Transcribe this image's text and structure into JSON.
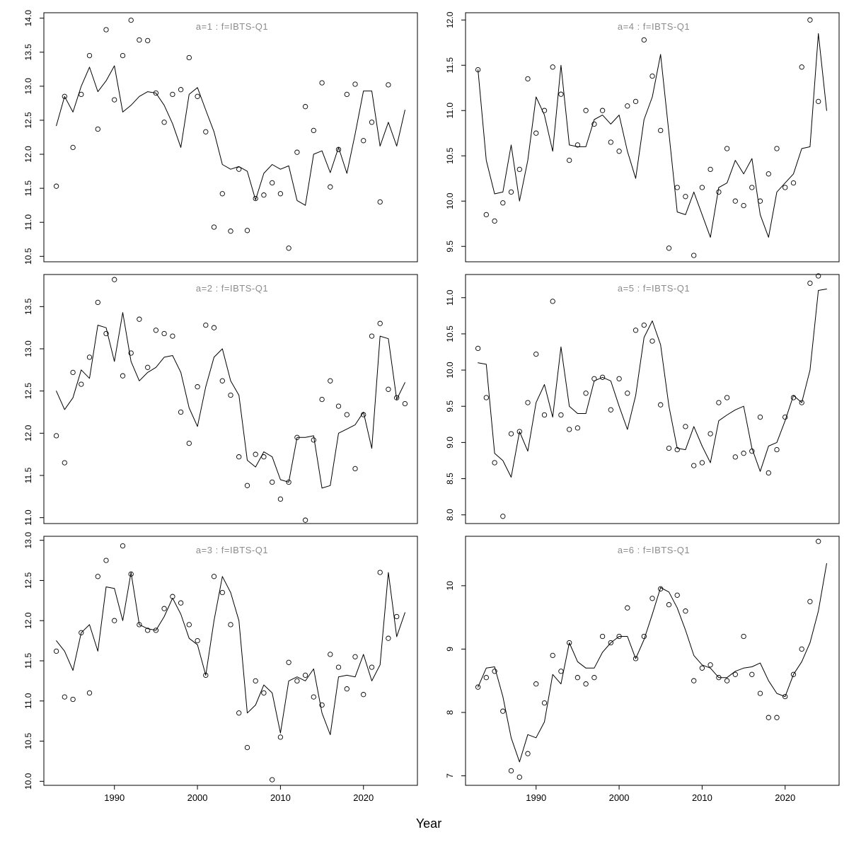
{
  "figure": {
    "xlabel": "Year"
  },
  "chart_data": [
    {
      "type": "line",
      "title": "a=1  :  f=IBTS-Q1",
      "xlabel": "Year",
      "xlim": [
        1981.5,
        2026.5
      ],
      "xticks": [
        1990,
        2000,
        2010,
        2020
      ],
      "show_x_tick_labels": false,
      "ylim": [
        10.42,
        14.08
      ],
      "yticks": [
        "10.5",
        "11.0",
        "11.5",
        "12.0",
        "12.5",
        "13.0",
        "13.5",
        "14.0"
      ],
      "x": [
        1983,
        1984,
        1985,
        1986,
        1987,
        1988,
        1989,
        1990,
        1991,
        1992,
        1993,
        1994,
        1995,
        1996,
        1997,
        1998,
        1999,
        2000,
        2001,
        2002,
        2003,
        2004,
        2005,
        2006,
        2007,
        2008,
        2009,
        2010,
        2011,
        2012,
        2013,
        2014,
        2015,
        2016,
        2017,
        2018,
        2019,
        2020,
        2021,
        2022,
        2023,
        2024,
        2025
      ],
      "series": [
        {
          "name": "fitted-line",
          "style": "line",
          "values": [
            12.42,
            12.85,
            12.62,
            13.0,
            13.28,
            12.92,
            13.08,
            13.3,
            12.62,
            12.72,
            12.85,
            12.92,
            12.9,
            12.72,
            12.45,
            12.1,
            12.88,
            12.98,
            12.65,
            12.33,
            11.85,
            11.78,
            11.82,
            11.75,
            11.33,
            11.72,
            11.85,
            11.78,
            11.83,
            11.32,
            11.25,
            12.0,
            12.05,
            11.73,
            12.1,
            11.72,
            12.3,
            12.93,
            12.93,
            12.12,
            12.47,
            12.12,
            12.65
          ]
        },
        {
          "name": "observed-points",
          "style": "points",
          "values": [
            11.53,
            12.85,
            12.1,
            12.88,
            13.45,
            12.37,
            13.83,
            12.8,
            13.45,
            13.97,
            13.68,
            13.67,
            12.9,
            12.47,
            12.88,
            12.95,
            13.42,
            12.85,
            12.33,
            10.93,
            11.42,
            10.87,
            11.78,
            10.88,
            11.35,
            11.4,
            11.58,
            11.42,
            10.62,
            12.03,
            12.7,
            12.35,
            13.05,
            11.52,
            12.07,
            12.88,
            13.03,
            12.2,
            12.47,
            11.3,
            13.02,
            null,
            null
          ]
        }
      ]
    },
    {
      "type": "line",
      "title": "a=2  :  f=IBTS-Q1",
      "xlabel": "Year",
      "xlim": [
        1981.5,
        2026.5
      ],
      "xticks": [
        1990,
        2000,
        2010,
        2020
      ],
      "show_x_tick_labels": false,
      "ylim": [
        10.93,
        13.88
      ],
      "yticks": [
        "11.0",
        "11.5",
        "12.0",
        "12.5",
        "13.0",
        "13.5"
      ],
      "x": [
        1983,
        1984,
        1985,
        1986,
        1987,
        1988,
        1989,
        1990,
        1991,
        1992,
        1993,
        1994,
        1995,
        1996,
        1997,
        1998,
        1999,
        2000,
        2001,
        2002,
        2003,
        2004,
        2005,
        2006,
        2007,
        2008,
        2009,
        2010,
        2011,
        2012,
        2013,
        2014,
        2015,
        2016,
        2017,
        2018,
        2019,
        2020,
        2021,
        2022,
        2023,
        2024,
        2025
      ],
      "series": [
        {
          "name": "fitted-line",
          "style": "line",
          "values": [
            12.5,
            12.28,
            12.42,
            12.75,
            12.65,
            13.28,
            13.25,
            12.85,
            13.43,
            12.85,
            12.62,
            12.72,
            12.78,
            12.9,
            12.92,
            12.72,
            12.3,
            12.08,
            12.55,
            12.9,
            13.0,
            12.62,
            12.45,
            11.68,
            11.6,
            11.78,
            11.72,
            11.45,
            11.42,
            11.95,
            11.95,
            11.97,
            11.35,
            11.38,
            12.0,
            12.05,
            12.1,
            12.25,
            11.82,
            13.15,
            13.12,
            12.4,
            12.6
          ]
        },
        {
          "name": "observed-points",
          "style": "points",
          "values": [
            11.97,
            11.65,
            12.72,
            12.58,
            12.9,
            13.55,
            13.18,
            13.82,
            12.68,
            12.95,
            13.35,
            12.78,
            13.22,
            13.18,
            13.15,
            12.25,
            11.88,
            12.55,
            13.28,
            13.25,
            12.62,
            12.45,
            11.72,
            11.38,
            11.75,
            11.72,
            11.42,
            11.22,
            11.42,
            11.95,
            10.97,
            11.92,
            12.4,
            12.62,
            12.32,
            12.22,
            11.58,
            12.22,
            13.15,
            13.3,
            12.52,
            12.42,
            12.35
          ]
        }
      ]
    },
    {
      "type": "line",
      "title": "a=3  :  f=IBTS-Q1",
      "xlabel": "Year",
      "xlim": [
        1981.5,
        2026.5
      ],
      "xticks": [
        1990,
        2000,
        2010,
        2020
      ],
      "show_x_tick_labels": true,
      "ylim": [
        9.95,
        13.05
      ],
      "yticks": [
        "10.0",
        "10.5",
        "11.0",
        "11.5",
        "12.0",
        "12.5",
        "13.0"
      ],
      "x": [
        1983,
        1984,
        1985,
        1986,
        1987,
        1988,
        1989,
        1990,
        1991,
        1992,
        1993,
        1994,
        1995,
        1996,
        1997,
        1998,
        1999,
        2000,
        2001,
        2002,
        2003,
        2004,
        2005,
        2006,
        2007,
        2008,
        2009,
        2010,
        2011,
        2012,
        2013,
        2014,
        2015,
        2016,
        2017,
        2018,
        2019,
        2020,
        2021,
        2022,
        2023,
        2024,
        2025
      ],
      "series": [
        {
          "name": "fitted-line",
          "style": "line",
          "values": [
            11.75,
            11.62,
            11.38,
            11.85,
            11.95,
            11.62,
            12.42,
            12.4,
            12.0,
            12.6,
            11.95,
            11.9,
            11.88,
            12.05,
            12.28,
            12.08,
            11.78,
            11.7,
            11.32,
            12.0,
            12.55,
            12.35,
            12.0,
            10.85,
            10.95,
            11.2,
            11.1,
            10.6,
            11.25,
            11.3,
            11.25,
            11.4,
            10.85,
            10.58,
            11.3,
            11.32,
            11.3,
            11.58,
            11.25,
            11.45,
            12.6,
            11.8,
            12.1
          ]
        },
        {
          "name": "observed-points",
          "style": "points",
          "values": [
            11.62,
            11.05,
            11.02,
            11.85,
            11.1,
            12.55,
            12.75,
            12.0,
            12.93,
            12.58,
            11.95,
            11.88,
            11.88,
            12.15,
            12.3,
            12.22,
            11.95,
            11.75,
            11.32,
            12.55,
            12.35,
            11.95,
            10.85,
            10.42,
            11.25,
            11.1,
            10.02,
            10.55,
            11.48,
            11.25,
            11.32,
            11.05,
            10.95,
            11.58,
            11.42,
            11.15,
            11.55,
            11.08,
            11.42,
            12.6,
            11.78,
            12.05,
            null
          ]
        }
      ]
    },
    {
      "type": "line",
      "title": "a=4  :  f=IBTS-Q1",
      "xlabel": "Year",
      "xlim": [
        1981.5,
        2026.5
      ],
      "xticks": [
        1990,
        2000,
        2010,
        2020
      ],
      "show_x_tick_labels": false,
      "ylim": [
        9.33,
        12.08
      ],
      "yticks": [
        "9.5",
        "10.0",
        "10.5",
        "11.0",
        "11.5",
        "12.0"
      ],
      "x": [
        1983,
        1984,
        1985,
        1986,
        1987,
        1988,
        1989,
        1990,
        1991,
        1992,
        1993,
        1994,
        1995,
        1996,
        1997,
        1998,
        1999,
        2000,
        2001,
        2002,
        2003,
        2004,
        2005,
        2006,
        2007,
        2008,
        2009,
        2010,
        2011,
        2012,
        2013,
        2014,
        2015,
        2016,
        2017,
        2018,
        2019,
        2020,
        2021,
        2022,
        2023,
        2024,
        2025
      ],
      "series": [
        {
          "name": "fitted-line",
          "style": "line",
          "values": [
            11.45,
            10.45,
            10.08,
            10.1,
            10.62,
            10.0,
            10.45,
            11.15,
            10.95,
            10.55,
            11.5,
            10.62,
            10.6,
            10.6,
            10.9,
            10.95,
            10.85,
            10.95,
            10.55,
            10.25,
            10.9,
            11.15,
            11.62,
            10.75,
            9.88,
            9.85,
            10.1,
            9.85,
            9.6,
            10.15,
            10.2,
            10.45,
            10.3,
            10.47,
            9.85,
            9.6,
            10.1,
            10.2,
            10.3,
            10.58,
            10.6,
            11.85,
            11.0
          ]
        },
        {
          "name": "observed-points",
          "style": "points",
          "values": [
            11.45,
            9.85,
            9.78,
            9.98,
            10.1,
            10.35,
            11.35,
            10.75,
            11.0,
            11.48,
            11.18,
            10.45,
            10.62,
            11.0,
            10.85,
            11.0,
            10.65,
            10.55,
            11.05,
            11.1,
            11.78,
            11.38,
            10.78,
            9.48,
            10.15,
            10.05,
            9.4,
            10.15,
            10.35,
            10.1,
            10.58,
            10.0,
            9.95,
            10.15,
            10.0,
            10.3,
            10.58,
            10.15,
            10.2,
            11.48,
            12.0,
            11.1,
            null
          ]
        }
      ]
    },
    {
      "type": "line",
      "title": "a=5  :  f=IBTS-Q1",
      "xlabel": "Year",
      "xlim": [
        1981.5,
        2026.5
      ],
      "xticks": [
        1990,
        2000,
        2010,
        2020
      ],
      "show_x_tick_labels": false,
      "ylim": [
        7.88,
        11.32
      ],
      "yticks": [
        "8.0",
        "8.5",
        "9.0",
        "9.5",
        "10.0",
        "10.5",
        "11.0"
      ],
      "x": [
        1983,
        1984,
        1985,
        1986,
        1987,
        1988,
        1989,
        1990,
        1991,
        1992,
        1993,
        1994,
        1995,
        1996,
        1997,
        1998,
        1999,
        2000,
        2001,
        2002,
        2003,
        2004,
        2005,
        2006,
        2007,
        2008,
        2009,
        2010,
        2011,
        2012,
        2013,
        2014,
        2015,
        2016,
        2017,
        2018,
        2019,
        2020,
        2021,
        2022,
        2023,
        2024,
        2025
      ],
      "series": [
        {
          "name": "fitted-line",
          "style": "line",
          "values": [
            10.1,
            10.08,
            8.85,
            8.75,
            8.52,
            9.15,
            8.88,
            9.55,
            9.8,
            9.35,
            10.32,
            9.5,
            9.4,
            9.4,
            9.85,
            9.9,
            9.85,
            9.5,
            9.18,
            9.65,
            10.45,
            10.68,
            10.35,
            9.5,
            8.92,
            8.9,
            9.22,
            8.95,
            8.72,
            9.3,
            9.38,
            9.45,
            9.5,
            8.92,
            8.6,
            8.95,
            9.0,
            9.3,
            9.65,
            9.55,
            10.0,
            11.1,
            11.12
          ]
        },
        {
          "name": "observed-points",
          "style": "points",
          "values": [
            10.3,
            9.62,
            8.72,
            7.98,
            9.12,
            9.15,
            9.55,
            10.22,
            9.38,
            10.95,
            9.38,
            9.18,
            9.2,
            9.68,
            9.88,
            9.9,
            9.45,
            9.88,
            9.68,
            10.55,
            10.62,
            10.4,
            9.52,
            8.92,
            8.9,
            9.22,
            8.68,
            8.72,
            9.12,
            9.55,
            9.62,
            8.8,
            8.85,
            8.88,
            9.35,
            8.58,
            8.9,
            9.35,
            9.62,
            9.55,
            11.2,
            11.3,
            null
          ]
        }
      ]
    },
    {
      "type": "line",
      "title": "a=6  :  f=IBTS-Q1",
      "xlabel": "Year",
      "xlim": [
        1981.5,
        2026.5
      ],
      "xticks": [
        1990,
        2000,
        2010,
        2020
      ],
      "show_x_tick_labels": true,
      "ylim": [
        6.85,
        10.78
      ],
      "yticks": [
        "7",
        "8",
        "9",
        "10"
      ],
      "x": [
        1983,
        1984,
        1985,
        1986,
        1987,
        1988,
        1989,
        1990,
        1991,
        1992,
        1993,
        1994,
        1995,
        1996,
        1997,
        1998,
        1999,
        2000,
        2001,
        2002,
        2003,
        2004,
        2005,
        2006,
        2007,
        2008,
        2009,
        2010,
        2011,
        2012,
        2013,
        2014,
        2015,
        2016,
        2017,
        2018,
        2019,
        2020,
        2021,
        2022,
        2023,
        2024,
        2025
      ],
      "series": [
        {
          "name": "fitted-line",
          "style": "line",
          "values": [
            8.4,
            8.7,
            8.72,
            8.25,
            7.6,
            7.22,
            7.65,
            7.6,
            7.85,
            8.6,
            8.45,
            9.1,
            8.8,
            8.7,
            8.7,
            8.95,
            9.1,
            9.2,
            9.2,
            8.85,
            9.15,
            9.55,
            9.97,
            9.9,
            9.65,
            9.3,
            8.9,
            8.75,
            8.7,
            8.55,
            8.55,
            8.65,
            8.7,
            8.72,
            8.78,
            8.5,
            8.3,
            8.25,
            8.6,
            8.8,
            9.1,
            9.6,
            10.35
          ]
        },
        {
          "name": "observed-points",
          "style": "points",
          "values": [
            8.4,
            8.55,
            8.65,
            8.02,
            7.08,
            6.98,
            7.35,
            8.45,
            8.15,
            8.9,
            8.65,
            9.1,
            8.55,
            8.45,
            8.55,
            9.2,
            9.1,
            9.2,
            9.65,
            8.85,
            9.2,
            9.8,
            9.95,
            9.7,
            9.85,
            9.6,
            8.5,
            8.7,
            8.75,
            8.55,
            8.5,
            8.6,
            9.2,
            8.6,
            8.3,
            7.92,
            7.92,
            8.25,
            8.6,
            9.0,
            9.75,
            10.7,
            null
          ]
        }
      ]
    }
  ]
}
